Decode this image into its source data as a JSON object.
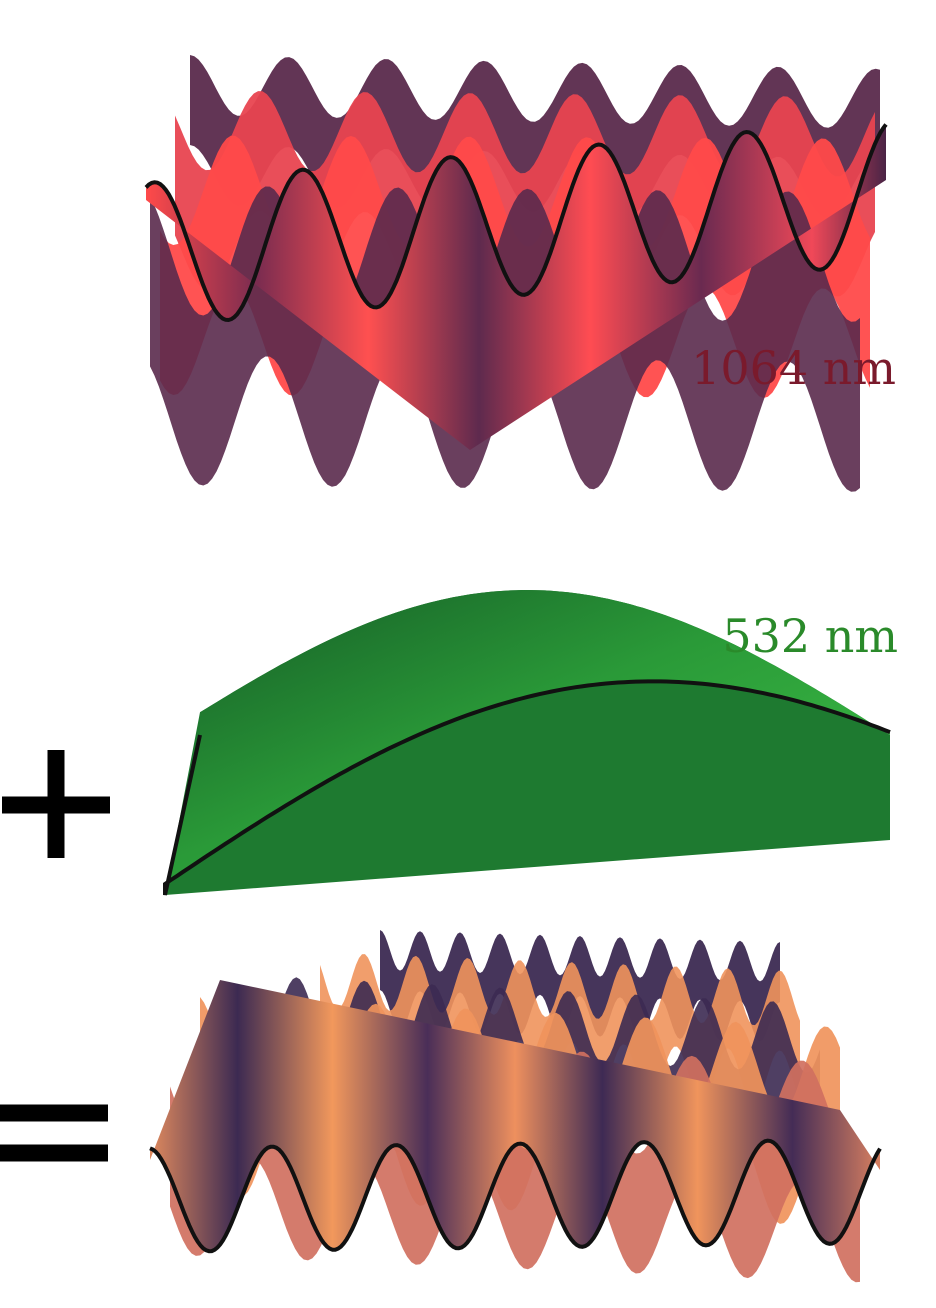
{
  "panels": [
    {
      "id": "red",
      "label": "1064 nm",
      "label_color": "#7a1a2c",
      "colors": {
        "light": "#ff4a4a",
        "mid": "#e84450",
        "dark": "#5a2a4c"
      }
    },
    {
      "id": "green",
      "label": "532 nm",
      "label_color": "#2a8a2a",
      "colors": {
        "light": "#3cc040",
        "mid": "#2ea636",
        "dark": "#155a26"
      }
    },
    {
      "id": "sum",
      "label": "",
      "label_color": "#000000",
      "colors": {
        "light": "#f0945c",
        "mid": "#d07060",
        "dark": "#3c2a52"
      }
    }
  ],
  "operators": {
    "plus": "+",
    "equals": "="
  }
}
